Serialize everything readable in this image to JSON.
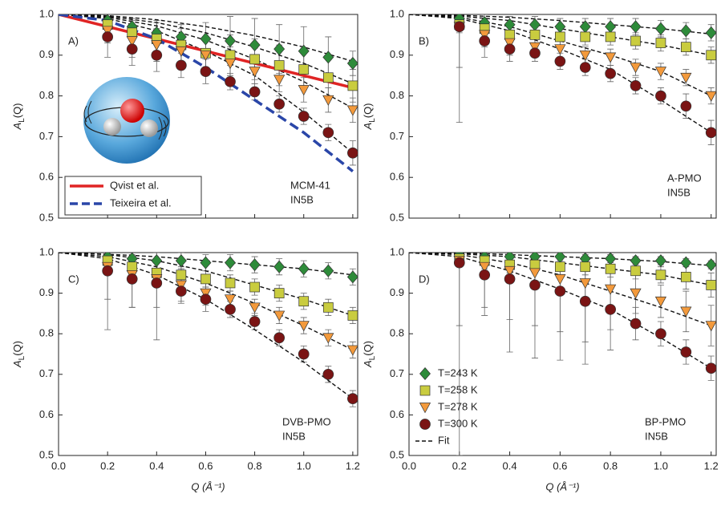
{
  "chart_data": [
    {
      "type": "scatter",
      "panel_label": "A)",
      "annotation": [
        "MCM-41",
        "IN5B"
      ],
      "y_label": {
        "main": "A",
        "sub": "L",
        "rest": "(Q)"
      },
      "xlim": [
        0,
        1.22
      ],
      "ylim": [
        0.5,
        1.0
      ],
      "xticks": [
        0,
        0.2,
        0.4,
        0.6,
        0.8,
        1,
        1.2
      ],
      "yticks": [
        0.5,
        0.6,
        0.7,
        0.8,
        0.9,
        {
          "value": 1,
          "label": "1.0"
        }
      ],
      "x": [
        0.2,
        0.3,
        0.4,
        0.5,
        0.6,
        0.7,
        0.8,
        0.9,
        1.0,
        1.1,
        1.2
      ],
      "series": [
        {
          "color": "#2e8b3a",
          "marker": "diamond",
          "values": [
            0.985,
            0.97,
            0.955,
            0.945,
            0.94,
            0.935,
            0.925,
            0.915,
            0.91,
            0.895,
            0.88
          ],
          "errors": [
            0.015,
            0.02,
            0.03,
            0.03,
            0.04,
            0.06,
            0.065,
            0.06,
            0.06,
            0.05,
            0.03
          ]
        },
        {
          "color": "#c9cc3f",
          "marker": "square",
          "values": [
            0.975,
            0.955,
            0.94,
            0.925,
            0.905,
            0.9,
            0.89,
            0.875,
            0.865,
            0.845,
            0.825
          ],
          "errors": [
            0.02,
            0.03,
            0.04,
            0.04,
            0.04,
            0.05,
            0.05,
            0.05,
            0.05,
            0.05,
            0.04
          ]
        },
        {
          "color": "#f39a3c",
          "marker": "triangle",
          "values": [
            0.96,
            0.935,
            0.925,
            0.91,
            0.9,
            0.88,
            0.86,
            0.84,
            0.815,
            0.79,
            0.765
          ],
          "errors": [
            0.03,
            0.04,
            0.04,
            0.04,
            0.04,
            0.04,
            0.03,
            0.03,
            0.03,
            0.03,
            0.03
          ]
        },
        {
          "color": "#7a1414",
          "marker": "circle",
          "values": [
            0.945,
            0.915,
            0.9,
            0.875,
            0.86,
            0.835,
            0.81,
            0.78,
            0.75,
            0.71,
            0.66
          ],
          "errors": [
            0.05,
            0.04,
            0.04,
            0.03,
            0.03,
            0.02,
            0.02,
            0.02,
            0.02,
            0.02,
            0.03
          ]
        }
      ],
      "fit_x": [
        0,
        0.2,
        0.4,
        0.6,
        0.8,
        1.0,
        1.2
      ],
      "fits": [
        {
          "values": [
            1,
            0.997,
            0.987,
            0.97,
            0.948,
            0.92,
            0.885
          ]
        },
        {
          "values": [
            1,
            0.995,
            0.98,
            0.955,
            0.92,
            0.88,
            0.83
          ]
        },
        {
          "values": [
            1,
            0.993,
            0.972,
            0.937,
            0.89,
            0.835,
            0.77
          ]
        },
        {
          "values": [
            1,
            0.99,
            0.96,
            0.91,
            0.85,
            0.76,
            0.66
          ]
        }
      ],
      "reference_lines": [
        {
          "name": "Qvist et al.",
          "color": "#e02424",
          "dashed": false,
          "x": [
            0,
            1.2
          ],
          "values": [
            1.0,
            0.82
          ]
        },
        {
          "name": "Teixeira et al.",
          "color": "#2a46a8",
          "dashed": true,
          "x": [
            0,
            0.2,
            0.4,
            0.6,
            0.8,
            1.0,
            1.2
          ],
          "values": [
            1,
            0.985,
            0.94,
            0.87,
            0.79,
            0.71,
            0.615
          ]
        }
      ]
    },
    {
      "type": "scatter",
      "panel_label": "B)",
      "annotation": [
        "A-PMO",
        "IN5B"
      ],
      "y_label": {
        "main": "A",
        "sub": "L",
        "rest": "(Q)"
      },
      "xlim": [
        0,
        1.22
      ],
      "ylim": [
        0.5,
        1.0
      ],
      "xticks": [
        0,
        0.2,
        0.4,
        0.6,
        0.8,
        1,
        1.2
      ],
      "yticks": [
        0.5,
        0.6,
        0.7,
        0.8,
        0.9,
        {
          "value": 1,
          "label": "1.0"
        }
      ],
      "x": [
        0.2,
        0.3,
        0.4,
        0.5,
        0.6,
        0.7,
        0.8,
        0.9,
        1.0,
        1.1,
        1.2
      ],
      "series": [
        {
          "color": "#2e8b3a",
          "marker": "diamond",
          "values": [
            0.99,
            0.98,
            0.975,
            0.975,
            0.97,
            0.97,
            0.97,
            0.97,
            0.965,
            0.96,
            0.955
          ],
          "errors": [
            0.01,
            0.02,
            0.02,
            0.02,
            0.02,
            0.02,
            0.02,
            0.02,
            0.02,
            0.02,
            0.02
          ]
        },
        {
          "color": "#c9cc3f",
          "marker": "square",
          "values": [
            0.975,
            0.965,
            0.95,
            0.95,
            0.945,
            0.945,
            0.945,
            0.935,
            0.93,
            0.92,
            0.9
          ],
          "errors": [
            0.02,
            0.02,
            0.02,
            0.02,
            0.02,
            0.02,
            0.02,
            0.02,
            0.02,
            0.02,
            0.02
          ]
        },
        {
          "color": "#f39a3c",
          "marker": "triangle",
          "values": [
            0.97,
            0.95,
            0.93,
            0.92,
            0.915,
            0.9,
            0.895,
            0.87,
            0.86,
            0.845,
            0.8
          ],
          "errors": [
            0.1,
            0.03,
            0.03,
            0.02,
            0.02,
            0.02,
            0.02,
            0.02,
            0.02,
            0.02,
            0.02
          ]
        },
        {
          "color": "#7a1414",
          "marker": "circle",
          "values": [
            0.97,
            0.935,
            0.915,
            0.905,
            0.885,
            0.87,
            0.855,
            0.825,
            0.8,
            0.775,
            0.71
          ],
          "errors": [
            0.235,
            0.04,
            0.03,
            0.02,
            0.02,
            0.02,
            0.02,
            0.02,
            0.02,
            0.03,
            0.03
          ]
        }
      ],
      "fit_x": [
        0,
        0.2,
        0.4,
        0.6,
        0.8,
        1.0,
        1.2
      ],
      "fits": [
        {
          "values": [
            1,
            0.998,
            0.993,
            0.985,
            0.975,
            0.965,
            0.952
          ]
        },
        {
          "values": [
            1,
            0.996,
            0.985,
            0.965,
            0.945,
            0.925,
            0.9
          ]
        },
        {
          "values": [
            1,
            0.993,
            0.97,
            0.935,
            0.9,
            0.86,
            0.8
          ]
        },
        {
          "values": [
            1,
            0.99,
            0.96,
            0.915,
            0.865,
            0.79,
            0.71
          ]
        }
      ]
    },
    {
      "type": "scatter",
      "panel_label": "C)",
      "annotation": [
        "DVB-PMO",
        "IN5B"
      ],
      "x_label": "Q (Å⁻¹)",
      "y_label": {
        "main": "A",
        "sub": "L",
        "rest": "(Q)"
      },
      "xlim": [
        0,
        1.22
      ],
      "ylim": [
        0.5,
        1.0
      ],
      "xticks": [
        {
          "value": 0,
          "label": "0.0"
        },
        0.2,
        0.4,
        0.6,
        0.8,
        {
          "value": 1,
          "label": "1.0"
        },
        1.2
      ],
      "yticks": [
        0.5,
        0.6,
        0.7,
        0.8,
        0.9,
        {
          "value": 1,
          "label": "1.0"
        }
      ],
      "x": [
        0.2,
        0.3,
        0.4,
        0.5,
        0.6,
        0.7,
        0.8,
        0.9,
        1.0,
        1.1,
        1.2
      ],
      "series": [
        {
          "color": "#2e8b3a",
          "marker": "diamond",
          "values": [
            0.99,
            0.985,
            0.98,
            0.98,
            0.975,
            0.975,
            0.97,
            0.965,
            0.96,
            0.955,
            0.94
          ],
          "errors": [
            0.02,
            0.02,
            0.02,
            0.02,
            0.02,
            0.02,
            0.02,
            0.02,
            0.02,
            0.02,
            0.02
          ]
        },
        {
          "color": "#c9cc3f",
          "marker": "square",
          "values": [
            0.98,
            0.965,
            0.95,
            0.945,
            0.935,
            0.925,
            0.915,
            0.9,
            0.88,
            0.865,
            0.845
          ],
          "errors": [
            0.03,
            0.03,
            0.03,
            0.02,
            0.02,
            0.02,
            0.02,
            0.02,
            0.02,
            0.02,
            0.02
          ]
        },
        {
          "color": "#f39a3c",
          "marker": "triangle",
          "values": [
            0.965,
            0.945,
            0.935,
            0.92,
            0.9,
            0.885,
            0.865,
            0.845,
            0.82,
            0.79,
            0.76
          ],
          "errors": [
            0.08,
            0.08,
            0.15,
            0.04,
            0.03,
            0.02,
            0.02,
            0.02,
            0.02,
            0.02,
            0.02
          ]
        },
        {
          "color": "#7a1414",
          "marker": "circle",
          "values": [
            0.955,
            0.935,
            0.925,
            0.905,
            0.885,
            0.86,
            0.83,
            0.79,
            0.75,
            0.7,
            0.64
          ],
          "errors": [
            0.145,
            0.07,
            0.06,
            0.03,
            0.03,
            0.02,
            0.02,
            0.02,
            0.02,
            0.02,
            0.02
          ]
        }
      ],
      "fit_x": [
        0,
        0.2,
        0.4,
        0.6,
        0.8,
        1.0,
        1.2
      ],
      "fits": [
        {
          "values": [
            1,
            0.996,
            0.99,
            0.98,
            0.97,
            0.96,
            0.945
          ]
        },
        {
          "values": [
            1,
            0.995,
            0.98,
            0.955,
            0.92,
            0.885,
            0.845
          ]
        },
        {
          "values": [
            1,
            0.99,
            0.965,
            0.925,
            0.875,
            0.82,
            0.76
          ]
        },
        {
          "values": [
            1,
            0.985,
            0.945,
            0.885,
            0.81,
            0.73,
            0.64
          ]
        }
      ]
    },
    {
      "type": "scatter",
      "panel_label": "D)",
      "annotation": [
        "BP-PMO",
        "IN5B"
      ],
      "x_label": "Q (Å⁻¹)",
      "y_label": {
        "main": "A",
        "sub": "L",
        "rest": "(Q)"
      },
      "xlim": [
        0,
        1.22
      ],
      "ylim": [
        0.5,
        1.0
      ],
      "xticks": [
        {
          "value": 0,
          "label": "0.0"
        },
        0.2,
        0.4,
        0.6,
        0.8,
        {
          "value": 1,
          "label": "1.0"
        },
        1.2
      ],
      "yticks": [
        0.5,
        0.6,
        0.7,
        0.8,
        0.9,
        {
          "value": 1,
          "label": "1.0"
        }
      ],
      "x": [
        0.2,
        0.3,
        0.4,
        0.5,
        0.6,
        0.7,
        0.8,
        0.9,
        1.0,
        1.1,
        1.2
      ],
      "series": [
        {
          "name": "T=243 K",
          "color": "#2e8b3a",
          "marker": "diamond",
          "values": [
            0.995,
            0.99,
            0.99,
            0.99,
            0.99,
            0.985,
            0.985,
            0.98,
            0.98,
            0.975,
            0.97
          ],
          "errors": [
            0.01,
            0.01,
            0.01,
            0.01,
            0.01,
            0.01,
            0.01,
            0.01,
            0.01,
            0.01,
            0.01
          ]
        },
        {
          "name": "T=258 K",
          "color": "#c9cc3f",
          "marker": "square",
          "values": [
            0.985,
            0.98,
            0.97,
            0.97,
            0.965,
            0.965,
            0.96,
            0.955,
            0.945,
            0.94,
            0.92
          ],
          "errors": [
            0.02,
            0.02,
            0.02,
            0.02,
            0.02,
            0.02,
            0.02,
            0.02,
            0.02,
            0.03,
            0.03
          ]
        },
        {
          "name": "T=278 K",
          "color": "#f39a3c",
          "marker": "triangle",
          "values": [
            0.98,
            0.965,
            0.955,
            0.95,
            0.935,
            0.925,
            0.91,
            0.9,
            0.88,
            0.855,
            0.82
          ],
          "errors": [
            0.16,
            0.1,
            0.2,
            0.21,
            0.2,
            0.2,
            0.1,
            0.05,
            0.04,
            0.05,
            0.05
          ]
        },
        {
          "name": "T=300 K",
          "color": "#7a1414",
          "marker": "circle",
          "values": [
            0.975,
            0.945,
            0.935,
            0.92,
            0.905,
            0.88,
            0.86,
            0.825,
            0.8,
            0.755,
            0.715
          ],
          "errors": [
            0.475,
            0.1,
            0.1,
            0.1,
            0.1,
            0.1,
            0.1,
            0.04,
            0.03,
            0.03,
            0.03
          ]
        }
      ],
      "fit_x": [
        0,
        0.2,
        0.4,
        0.6,
        0.8,
        1.0,
        1.2
      ],
      "fit_label": "Fit",
      "fits": [
        {
          "values": [
            1,
            0.999,
            0.995,
            0.99,
            0.985,
            0.978,
            0.968
          ]
        },
        {
          "values": [
            1,
            0.997,
            0.99,
            0.975,
            0.96,
            0.945,
            0.92
          ]
        },
        {
          "values": [
            1,
            0.995,
            0.975,
            0.945,
            0.905,
            0.865,
            0.82
          ]
        },
        {
          "values": [
            1,
            0.99,
            0.955,
            0.91,
            0.86,
            0.79,
            0.715
          ]
        }
      ]
    }
  ]
}
